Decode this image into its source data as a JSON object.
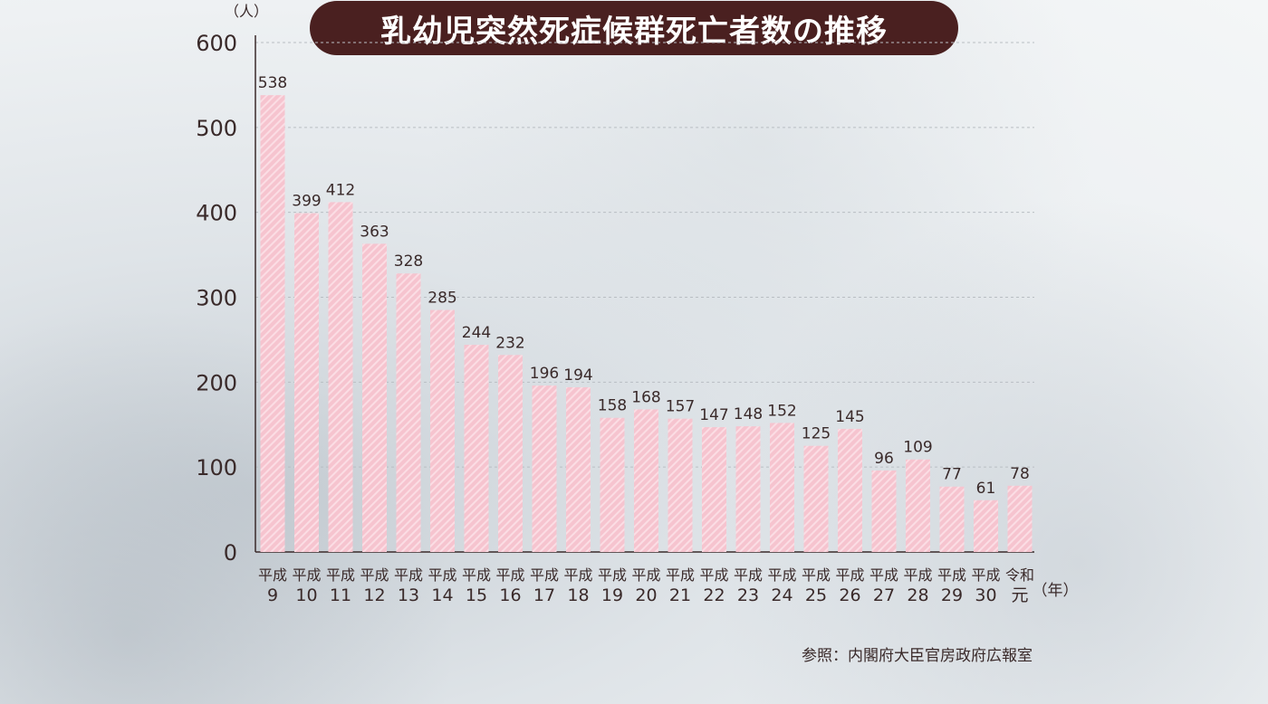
{
  "title": "乳幼児突然死症候群死亡者数の推移",
  "source": "参照：内閣府大臣官房政府広報室",
  "colors": {
    "bar": "#f6c4cf",
    "bar_stripe": "#fbdde4",
    "title_bg": "#4a2020",
    "axis": "#3a2a2a",
    "grid": "#b9bec3"
  },
  "chart_data": {
    "type": "bar",
    "ylabel": "（人）",
    "xlabel": "（年）",
    "ylim": [
      0,
      600
    ],
    "yticks": [
      "0",
      "100",
      "200",
      "300",
      "400",
      "500",
      "600"
    ],
    "grid": true,
    "categories": [
      [
        "平成",
        "9"
      ],
      [
        "平成",
        "10"
      ],
      [
        "平成",
        "11"
      ],
      [
        "平成",
        "12"
      ],
      [
        "平成",
        "13"
      ],
      [
        "平成",
        "14"
      ],
      [
        "平成",
        "15"
      ],
      [
        "平成",
        "16"
      ],
      [
        "平成",
        "17"
      ],
      [
        "平成",
        "18"
      ],
      [
        "平成",
        "19"
      ],
      [
        "平成",
        "20"
      ],
      [
        "平成",
        "21"
      ],
      [
        "平成",
        "22"
      ],
      [
        "平成",
        "23"
      ],
      [
        "平成",
        "24"
      ],
      [
        "平成",
        "25"
      ],
      [
        "平成",
        "26"
      ],
      [
        "平成",
        "27"
      ],
      [
        "平成",
        "28"
      ],
      [
        "平成",
        "29"
      ],
      [
        "平成",
        "30"
      ],
      [
        "令和",
        "元"
      ]
    ],
    "values": [
      538,
      399,
      412,
      363,
      328,
      285,
      244,
      232,
      196,
      194,
      158,
      168,
      157,
      147,
      148,
      152,
      125,
      145,
      96,
      109,
      77,
      61,
      78
    ]
  }
}
